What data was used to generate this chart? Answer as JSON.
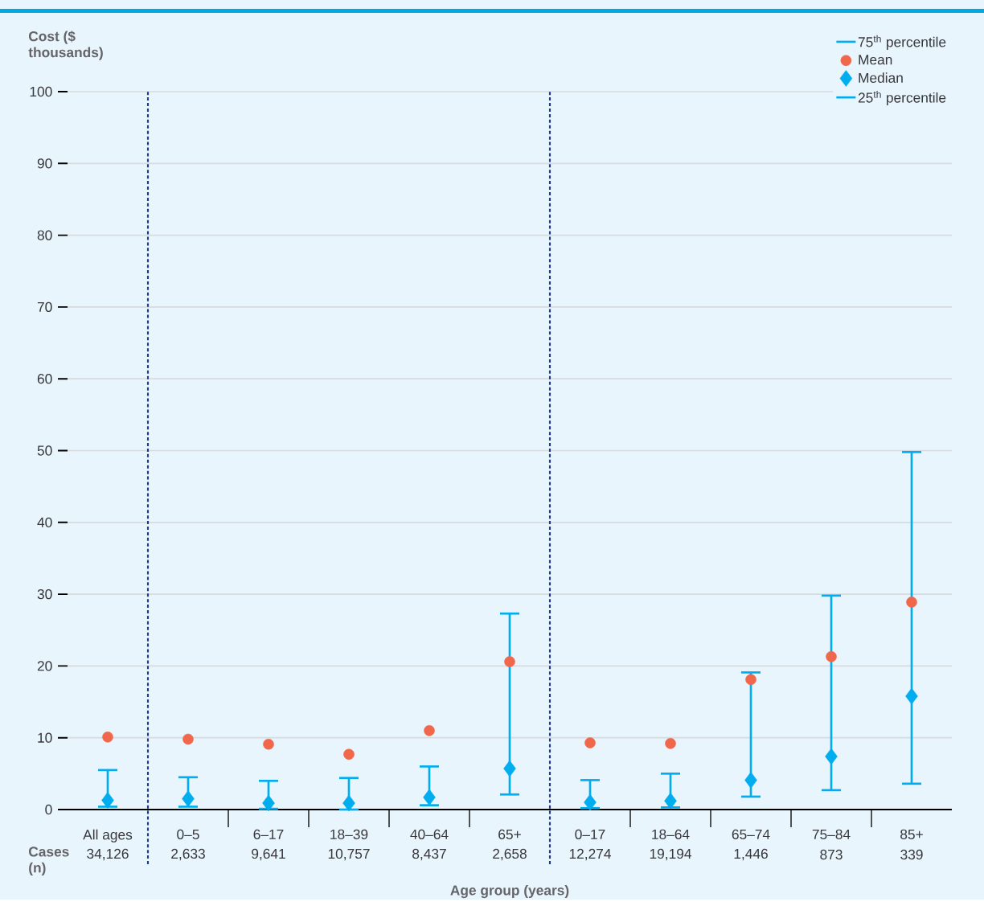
{
  "chart_data": {
    "type": "scatter",
    "ylabel": "Cost ($ thousands)",
    "xlabel": "Age group (years)",
    "categories": [
      "All ages",
      "0–5",
      "6–17",
      "18–39",
      "40–64",
      "65+",
      "0–17",
      "18–64",
      "65–74",
      "75–84",
      "85+"
    ],
    "series": [
      {
        "name": "Mean",
        "color": "#f0674c",
        "marker": "circle",
        "values": [
          10.1,
          9.8,
          9.1,
          7.7,
          11.0,
          20.6,
          9.3,
          9.2,
          18.1,
          21.3,
          28.9
        ]
      },
      {
        "name": "Median",
        "color": "#00aeef",
        "marker": "diamond",
        "values": [
          1.3,
          1.5,
          0.9,
          0.9,
          1.7,
          5.7,
          1.0,
          1.2,
          4.1,
          7.4,
          15.8
        ],
        "errors": [
          [
            0.4,
            5.5
          ],
          [
            0.4,
            4.5
          ],
          [
            0.1,
            4.0
          ],
          [
            0.0,
            4.4
          ],
          [
            0.6,
            6.0
          ],
          [
            2.1,
            27.3
          ],
          [
            0.2,
            4.1
          ],
          [
            0.3,
            5.0
          ],
          [
            1.8,
            19.1
          ],
          [
            2.7,
            29.8
          ],
          [
            3.6,
            49.8
          ]
        ]
      }
    ],
    "ylim": [
      0,
      100
    ],
    "yticks": [
      0,
      10,
      20,
      30,
      40,
      50,
      60,
      70,
      80,
      90,
      100
    ],
    "grid": "y",
    "legend": "top right",
    "annotations": [
      "Cases (n)",
      "34,126",
      "2,633",
      "9,641",
      "10,757",
      "8,437",
      "2,658",
      "12,274",
      "19,194",
      "1,446",
      "873",
      "339",
      "75$^{th}$ percentile",
      "25$^{th}$ percentile"
    ]
  }
}
